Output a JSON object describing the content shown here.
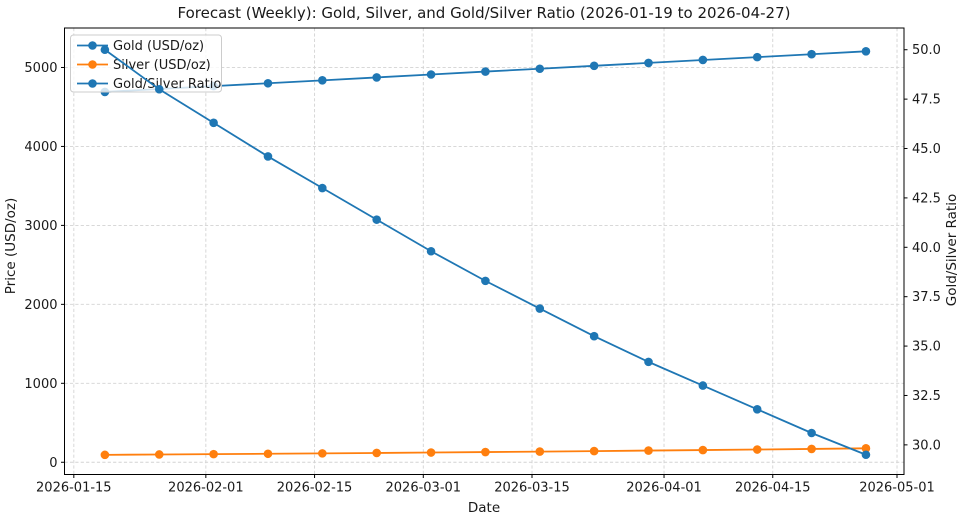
{
  "chart_data": {
    "type": "line",
    "title": "Forecast (Weekly): Gold, Silver, and Gold/Silver Ratio (2026-01-19 to 2026-04-27)",
    "xlabel": "Date",
    "ylabel_left": "Price (USD/oz)",
    "ylabel_right": "Gold/Silver Ratio",
    "x_dates": [
      "2026-01-19",
      "2026-01-26",
      "2026-02-02",
      "2026-02-09",
      "2026-02-16",
      "2026-02-23",
      "2026-03-02",
      "2026-03-09",
      "2026-03-16",
      "2026-03-23",
      "2026-03-30",
      "2026-04-06",
      "2026-04-13",
      "2026-04-20",
      "2026-04-27"
    ],
    "x_offsets_days": [
      4,
      11,
      18,
      25,
      32,
      39,
      46,
      53,
      60,
      67,
      74,
      81,
      88,
      95,
      102
    ],
    "x_ticks": [
      {
        "label": "2026-01-15",
        "offset": 0
      },
      {
        "label": "2026-02-01",
        "offset": 17
      },
      {
        "label": "2026-02-15",
        "offset": 31
      },
      {
        "label": "2026-03-01",
        "offset": 45
      },
      {
        "label": "2026-03-15",
        "offset": 59
      },
      {
        "label": "2026-04-01",
        "offset": 76
      },
      {
        "label": "2026-04-15",
        "offset": 90
      },
      {
        "label": "2026-05-01",
        "offset": 106
      }
    ],
    "x_range_offsets": [
      -1.2,
      106.9
    ],
    "left_axis": {
      "range": [
        -155,
        5500
      ],
      "ticks": [
        {
          "label": "0",
          "value": 0
        },
        {
          "label": "1000",
          "value": 1000
        },
        {
          "label": "2000",
          "value": 2000
        },
        {
          "label": "3000",
          "value": 3000
        },
        {
          "label": "4000",
          "value": 4000
        },
        {
          "label": "5000",
          "value": 5000
        }
      ]
    },
    "right_axis": {
      "range": [
        28.5,
        51.1
      ],
      "ticks": [
        {
          "label": "30.0",
          "value": 30.0
        },
        {
          "label": "32.5",
          "value": 32.5
        },
        {
          "label": "35.0",
          "value": 35.0
        },
        {
          "label": "37.5",
          "value": 37.5
        },
        {
          "label": "40.0",
          "value": 40.0
        },
        {
          "label": "42.5",
          "value": 42.5
        },
        {
          "label": "45.0",
          "value": 45.0
        },
        {
          "label": "47.5",
          "value": 47.5
        },
        {
          "label": "50.0",
          "value": 50.0
        }
      ]
    },
    "series": [
      {
        "name": "Gold (USD/oz)",
        "slug": "gold",
        "axis": "left",
        "color": "#1f77b4",
        "values": [
          4690,
          4727,
          4764,
          4800,
          4837,
          4874,
          4911,
          4948,
          4984,
          5021,
          5058,
          5095,
          5131,
          5168,
          5205
        ]
      },
      {
        "name": "Silver (USD/oz)",
        "slug": "silver",
        "axis": "left",
        "color": "#ff7f0e",
        "values": [
          93.8,
          98.5,
          102.9,
          107.6,
          112.5,
          117.7,
          123.4,
          129.2,
          135.1,
          141.4,
          147.9,
          154.4,
          161.4,
          168.9,
          176.4
        ]
      },
      {
        "name": "Gold/Silver Ratio",
        "slug": "gold-silver-ratio",
        "axis": "right",
        "color": "#1f77b4",
        "values": [
          50.0,
          48.0,
          46.3,
          44.6,
          43.0,
          41.4,
          39.8,
          38.3,
          36.9,
          35.5,
          34.2,
          33.0,
          31.8,
          30.6,
          29.5
        ]
      }
    ],
    "legend": {
      "position": "upper-left",
      "entries": [
        "Gold (USD/oz)",
        "Silver (USD/oz)",
        "Gold/Silver Ratio"
      ]
    },
    "grid": {
      "show": true,
      "color": "#d3d3d3",
      "style": "dashed"
    },
    "colors": {
      "spine": "#000000",
      "text": "#1a1a1a",
      "background": "#ffffff"
    }
  }
}
